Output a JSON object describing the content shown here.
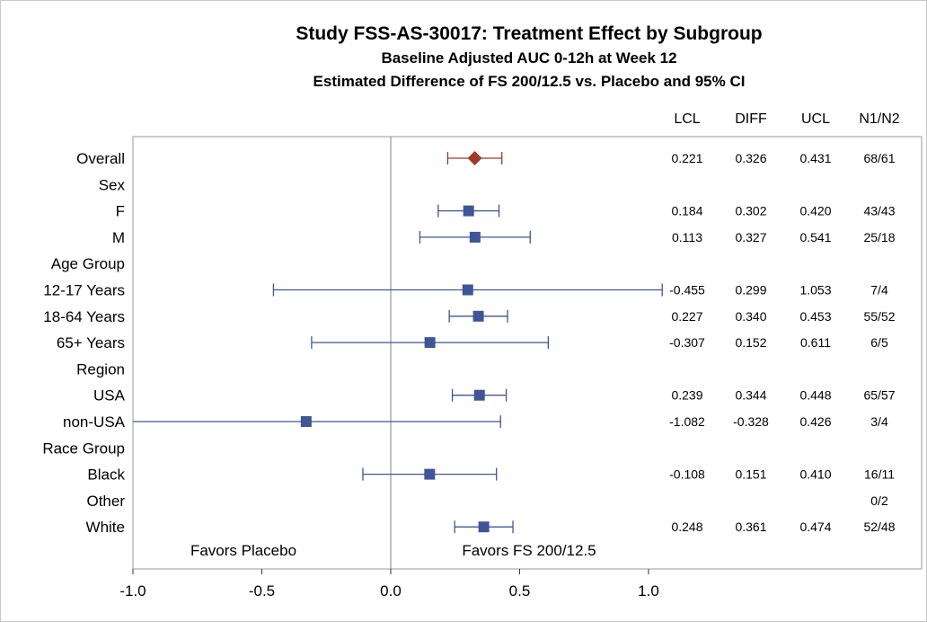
{
  "chart_data": {
    "type": "forest",
    "title": "Study FSS-AS-30017: Treatment Effect by Subgroup",
    "subtitles": [
      "Baseline Adjusted AUC 0-12h at Week 12",
      "Estimated Difference of FS 200/12.5 vs. Placebo and 95% CI"
    ],
    "columns": [
      "LCL",
      "DIFF",
      "UCL",
      "N1/N2"
    ],
    "xlim": [
      -1.0,
      1.0
    ],
    "xticks": [
      "-1.0",
      "-0.5",
      "0.0",
      "0.5",
      "1.0"
    ],
    "reference_line": 0,
    "favors_left": "Favors Placebo",
    "favors_right": "Favors FS 200/12.5",
    "colors": {
      "overall": "#A03A2A",
      "subgroup": "#3F5597",
      "axis": "#808080"
    },
    "rows": [
      {
        "label": "Overall",
        "kind": "overall",
        "lcl": 0.221,
        "diff": 0.326,
        "ucl": 0.431,
        "lcl_text": "0.221",
        "diff_text": "0.326",
        "ucl_text": "0.431",
        "n": "68/61"
      },
      {
        "label": "Sex",
        "kind": "header"
      },
      {
        "label": "F",
        "kind": "subgroup",
        "lcl": 0.184,
        "diff": 0.302,
        "ucl": 0.42,
        "lcl_text": "0.184",
        "diff_text": "0.302",
        "ucl_text": "0.420",
        "n": "43/43"
      },
      {
        "label": "M",
        "kind": "subgroup",
        "lcl": 0.113,
        "diff": 0.327,
        "ucl": 0.541,
        "lcl_text": "0.113",
        "diff_text": "0.327",
        "ucl_text": "0.541",
        "n": "25/18"
      },
      {
        "label": "Age Group",
        "kind": "header"
      },
      {
        "label": "12-17 Years",
        "kind": "subgroup",
        "lcl": -0.455,
        "diff": 0.299,
        "ucl": 1.053,
        "lcl_text": "-0.455",
        "diff_text": "0.299",
        "ucl_text": "1.053",
        "n": "7/4"
      },
      {
        "label": "18-64 Years",
        "kind": "subgroup",
        "lcl": 0.227,
        "diff": 0.34,
        "ucl": 0.453,
        "lcl_text": "0.227",
        "diff_text": "0.340",
        "ucl_text": "0.453",
        "n": "55/52"
      },
      {
        "label": "65+ Years",
        "kind": "subgroup",
        "lcl": -0.307,
        "diff": 0.152,
        "ucl": 0.611,
        "lcl_text": "-0.307",
        "diff_text": "0.152",
        "ucl_text": "0.611",
        "n": "6/5"
      },
      {
        "label": "Region",
        "kind": "header"
      },
      {
        "label": "USA",
        "kind": "subgroup",
        "lcl": 0.239,
        "diff": 0.344,
        "ucl": 0.448,
        "lcl_text": "0.239",
        "diff_text": "0.344",
        "ucl_text": "0.448",
        "n": "65/57"
      },
      {
        "label": "non-USA",
        "kind": "subgroup",
        "lcl": -1.082,
        "diff": -0.328,
        "ucl": 0.426,
        "lcl_text": "-1.082",
        "diff_text": "-0.328",
        "ucl_text": "0.426",
        "n": "3/4"
      },
      {
        "label": "Race Group",
        "kind": "header"
      },
      {
        "label": "Black",
        "kind": "subgroup",
        "lcl": -0.108,
        "diff": 0.151,
        "ucl": 0.41,
        "lcl_text": "-0.108",
        "diff_text": "0.151",
        "ucl_text": "0.410",
        "n": "16/11"
      },
      {
        "label": "Other",
        "kind": "subgroup",
        "n": "0/2"
      },
      {
        "label": "White",
        "kind": "subgroup",
        "lcl": 0.248,
        "diff": 0.361,
        "ucl": 0.474,
        "lcl_text": "0.248",
        "diff_text": "0.361",
        "ucl_text": "0.474",
        "n": "52/48"
      }
    ]
  }
}
